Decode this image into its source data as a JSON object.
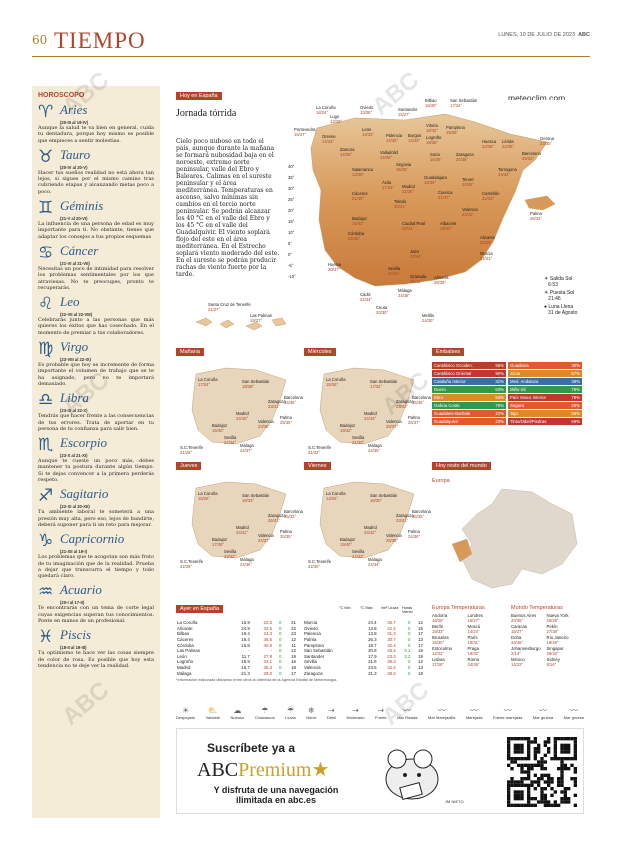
{
  "header": {
    "page_number": "60",
    "section": "TIEMPO",
    "date": "LUNES, 10 DE JULIO DE 2023",
    "logo": "ABC"
  },
  "horoscope": {
    "title": "HOROSCOPO",
    "signs": [
      {
        "glyph": "♈",
        "name": "Aries",
        "dates": "(20-III al 19-IV)",
        "text": "Aunque la salud te va bien en general, cuida tu dentadura, porque hoy mismo es posible que empieces a sentir molestias."
      },
      {
        "glyph": "♉",
        "name": "Tauro",
        "dates": "(20-IV al 20-V)",
        "text": "Hacer tus sueños realidad no está ahora tan lejos, si sigues por el mismo camino tras cubriendo etapas y alcanzando metas poco a poco."
      },
      {
        "glyph": "♊",
        "name": "Géminis",
        "dates": "(21-V al 20-VI)",
        "text": "La influencia de una persona de edad es muy importante para ti. No obstante, tienes que adaptar los consejos a tus propios esquemas"
      },
      {
        "glyph": "♋",
        "name": "Cáncer",
        "dates": "(21-VI al 21-VII)",
        "text": "Necesitas un poco de intimidad para resolver los problemas sentimentales por los que atraviesas. No te preocupes, pronto te recuperarás."
      },
      {
        "glyph": "♌",
        "name": "Leo",
        "dates": "(22-VII al 22-VIII)",
        "text": "Celebrarás junto a las personas que más quieres los éxitos que has cosechado. En el momento de premiar a tus colaboradores."
      },
      {
        "glyph": "♍",
        "name": "Virgo",
        "dates": "(23-VIII al 22-IX)",
        "text": "Es probable que hoy se incremente de forma importante el volumen de trabajo que se te ha asignado, pero no te importará demasiado."
      },
      {
        "glyph": "♎",
        "name": "Libra",
        "dates": "(23-IX al 22-X)",
        "text": "Tendrás que hacer frente a las consecuencias de tus errores. Trata de aportar en tu persona de tu confianza para salir bien."
      },
      {
        "glyph": "♏",
        "name": "Escorpio",
        "dates": "(23-X al 21-XI)",
        "text": "Aunque te cueste un poco más, debes mantener tu postura durante algún tiempo. Si te dejas convencer a la primera perderás respeto."
      },
      {
        "glyph": "♐",
        "name": "Sagitario",
        "dates": "(22-XI al 20-XII)",
        "text": "Tu ambiente laboral te someterá a una presión muy alta, pero eso, lejos de hundirte, deberá suponer para ti un reto para mejorar."
      },
      {
        "glyph": "♑",
        "name": "Capricornio",
        "dates": "(21-XII al 19-I)",
        "text": "Los problemas que te acogotan son más fruto de tu imaginación que de la realidad. Prueba a dejar que transcurra el tiempo y todo quedará claro."
      },
      {
        "glyph": "♒",
        "name": "Acuario",
        "dates": "(20-I al 17-II)",
        "text": "Te encontrarás con un tema de corte legal cuyas exigencias superan tus conocimientos. Ponte en manos de un profesional."
      },
      {
        "glyph": "♓",
        "name": "Piscis",
        "dates": "(18-II al 19-III)",
        "text": "Tu optimismo te hace ver las cosas siempre de color de rosa. Es posible que hoy esta tendencia no te deje ver la realidad."
      }
    ]
  },
  "today": {
    "tag": "Hoy en España",
    "headline": "Jornada tórrida",
    "body": "Cielo poco nuboso en todo el país, aunque durante la mañana se formará nubosidad baja en el noroeste, extremo norte peninsular, valle del Ebro y Baleares. Calimas en el sureste peninsular y el área mediterránea. Temperaturas en ascenso, salvo mínimas sin cambios en el tercio norte peninsular. Se podrán alcanzar los 40 °C en el valle del Ebro y los 45 °C en el valle del Guadalquivir. El viento soplará flojo del este en el área mediterránea. En el Estrecho soplará viento moderado del este. En el sureste se podrán producir rachas de viento fuerte por la tarde.",
    "brand": "meteoclim.com",
    "temp_scale": [
      "40°",
      "35°",
      "30°",
      "25°",
      "20°",
      "15°",
      "10°",
      "5°",
      "0°",
      "-5°",
      "-10°"
    ],
    "cities": [
      {
        "name": "La Coruña",
        "t": "18/24°"
      },
      {
        "name": "Lugo",
        "t": "13/28°"
      },
      {
        "name": "Oviedo",
        "t": "13/28°"
      },
      {
        "name": "Santander",
        "t": "15/27°"
      },
      {
        "name": "Bilbao",
        "t": "16/28°"
      },
      {
        "name": "San Sebastián",
        "t": "17/24°"
      },
      {
        "name": "Pontevedra",
        "t": "16/27°"
      },
      {
        "name": "Orense",
        "t": "14/33°"
      },
      {
        "name": "León",
        "t": "14/33°"
      },
      {
        "name": "Palencia",
        "t": "14/35°"
      },
      {
        "name": "Burgos",
        "t": "14/33°"
      },
      {
        "name": "Vitoria",
        "t": "16/32°"
      },
      {
        "name": "Logroño",
        "t": "18/36°"
      },
      {
        "name": "Pamplona",
        "t": "19/35°"
      },
      {
        "name": "Huesca",
        "t": "22/38°"
      },
      {
        "name": "Lérida",
        "t": "22/38°"
      },
      {
        "name": "Gerona",
        "t": "23/35°"
      },
      {
        "name": "Zamora",
        "t": "14/35°"
      },
      {
        "name": "Valladolid",
        "t": "14/36°"
      },
      {
        "name": "Soria",
        "t": "16/36°"
      },
      {
        "name": "Zaragoza",
        "t": "20/38°"
      },
      {
        "name": "Barcelona",
        "t": "25/33°"
      },
      {
        "name": "Salamanca",
        "t": "13/35°"
      },
      {
        "name": "Segovia",
        "t": "16/35°"
      },
      {
        "name": "Guadalajara",
        "t": "19/36°"
      },
      {
        "name": "Tarragona",
        "t": "24/32°"
      },
      {
        "name": "Ávila",
        "t": "17/33°"
      },
      {
        "name": "Madrid",
        "t": "22/36°"
      },
      {
        "name": "Teruel",
        "t": "20/35°"
      },
      {
        "name": "Cáceres",
        "t": "21/40°"
      },
      {
        "name": "Cuenca",
        "t": "21/37°"
      },
      {
        "name": "Castellón",
        "t": "22/33°"
      },
      {
        "name": "Palma",
        "t": "26/34°"
      },
      {
        "name": "Toledo",
        "t": "20/41°"
      },
      {
        "name": "Valencia",
        "t": "24/33°"
      },
      {
        "name": "Badajoz",
        "t": "15/43°"
      },
      {
        "name": "Ciudad Real",
        "t": "20/41°"
      },
      {
        "name": "Albacete",
        "t": "19/40°"
      },
      {
        "name": "Alicante",
        "t": "25/35°"
      },
      {
        "name": "Córdoba",
        "t": "24/45°"
      },
      {
        "name": "Jaén",
        "t": "27/44°"
      },
      {
        "name": "Murcia",
        "t": "24/41°"
      },
      {
        "name": "Huelva",
        "t": "20/37°"
      },
      {
        "name": "Sevilla",
        "t": "22/44°"
      },
      {
        "name": "Granada",
        "t": "26/41°"
      },
      {
        "name": "Almería",
        "t": "28/39°"
      },
      {
        "name": "Cádiz",
        "t": "22/34°"
      },
      {
        "name": "Málaga",
        "t": "24/38°"
      },
      {
        "name": "Ceuta",
        "t": "20/30°"
      },
      {
        "name": "Melilla",
        "t": "24/30°"
      },
      {
        "name": "Santa Cruz de Tenerife",
        "t": "21/27°"
      },
      {
        "name": "Las Palmas",
        "t": "19/27°"
      }
    ],
    "sun": {
      "sunrise_label": "Salida Sol",
      "sunrise": "6:53",
      "sunset_label": "Puesta Sol",
      "sunset": "21:46",
      "moon_label": "Luna Llena",
      "moon": "31 de Agosto"
    }
  },
  "forecasts": [
    {
      "tag": "Mañana",
      "cities": [
        "La Coruña",
        "San Sebastián",
        "Zaragoza",
        "Barcelona",
        "Madrid",
        "Valencia",
        "Palma",
        "Badajoz",
        "Sevilla",
        "Málaga",
        "S.C.Tenerife"
      ],
      "temps": [
        "17/24°",
        "18/28°",
        "23/41°",
        "24/35°",
        "24/40°",
        "23/36°",
        "25/35°",
        "15/40°",
        "24/44°",
        "24/37°",
        "21/28°"
      ]
    },
    {
      "tag": "Miércoles",
      "cities": [
        "La Coruña",
        "San Sebastián",
        "Zaragoza",
        "Barcelona",
        "Madrid",
        "Valencia",
        "Palma",
        "Badajoz",
        "Sevilla",
        "Málaga",
        "S.C.Tenerife"
      ],
      "temps": [
        "15/26°",
        "17/32°",
        "24/42°",
        "25/35°",
        "24/43°",
        "25/37°",
        "26/37°",
        "19/42°",
        "21/43°",
        "24/35°",
        "21/32°"
      ]
    },
    {
      "tag": "Jueves",
      "cities": [
        "La Coruña",
        "San Sebastián",
        "Zaragoza",
        "Barcelona",
        "Madrid",
        "Valencia",
        "Palma",
        "Badajoz",
        "Sevilla",
        "Málaga",
        "S.C.Tenerife"
      ],
      "temps": [
        "15/26°",
        "18/33°",
        "26/41°",
        "25/33°",
        "24/41°",
        "24/37°",
        "25/35°",
        "17/39°",
        "23/42°",
        "24/36°",
        "22/28°"
      ]
    },
    {
      "tag": "Viernes",
      "cities": [
        "La Coruña",
        "San Sebastián",
        "Zaragoza",
        "Barcelona",
        "Madrid",
        "Valencia",
        "Palma",
        "Badajoz",
        "Sevilla",
        "Málaga",
        "S.C.Tenerife"
      ],
      "temps": [
        "14/26°",
        "16/30°",
        "23/41°",
        "26/35°",
        "24/42°",
        "25/38°",
        "24/36°",
        "19/40°",
        "24/43°",
        "24/34°",
        "22/30°"
      ]
    }
  ],
  "reservoirs": {
    "tag": "Embalses",
    "left": [
      {
        "name": "Cantábrico Occiden.",
        "value": "96%",
        "color": "#c0392b"
      },
      {
        "name": "Cantábrico Oriental",
        "value": "90%",
        "color": "#c0392b"
      },
      {
        "name": "Cataluña Interior",
        "value": "31%",
        "color": "#3a6ea5"
      },
      {
        "name": "Duero",
        "value": "63%",
        "color": "#2e9a4a"
      },
      {
        "name": "Ebro",
        "value": "54%",
        "color": "#d98a2b"
      },
      {
        "name": "Galicia Costa",
        "value": "75%",
        "color": "#2e9a4a"
      },
      {
        "name": "Guadalete-Barbate",
        "value": "22%",
        "color": "#e05a2a"
      },
      {
        "name": "Guadalquivir",
        "value": "23%",
        "color": "#e05a2a"
      }
    ],
    "right": [
      {
        "name": "Guadiana",
        "value": "30%",
        "color": "#e05a2a"
      },
      {
        "name": "Júcar",
        "value": "57%",
        "color": "#d98a2b"
      },
      {
        "name": "Med. Andaluza",
        "value": "39%",
        "color": "#3a6ea5"
      },
      {
        "name": "Miño-Sil",
        "value": "79%",
        "color": "#2e9a4a"
      },
      {
        "name": "País Vasco Interior",
        "value": "78%",
        "color": "#c0392b"
      },
      {
        "name": "Segura",
        "value": "28%",
        "color": "#e05a2a"
      },
      {
        "name": "Tajo",
        "value": "56%",
        "color": "#d98a2b"
      },
      {
        "name": "Tinto/Odiel/Piedras",
        "value": "69%",
        "color": "#c0392b"
      }
    ]
  },
  "world": {
    "tag": "Hoy resto del mundo",
    "europe_label": "Europa"
  },
  "yesterday": {
    "tag": "Ayer en España",
    "headers": [
      "°C Mín",
      "°C Máx",
      "l/m² Lluvia",
      "Horas Viento"
    ],
    "rows_left": [
      [
        "La Coruña",
        "16.9",
        "23.0",
        "0",
        "21"
      ],
      [
        "Alicante",
        "24.9",
        "33.6",
        "0",
        "22"
      ],
      [
        "Bilbao",
        "19.4",
        "24.3",
        "0",
        "23"
      ],
      [
        "Cáceres",
        "16.4",
        "36.6",
        "0",
        "12"
      ],
      [
        "Córdoba",
        "16.8",
        "40.5",
        "0",
        "11"
      ],
      [
        "Las Palmas",
        "-",
        "-",
        "0",
        "12"
      ],
      [
        "León",
        "11.7",
        "27.8",
        "0",
        "19"
      ],
      [
        "Logroño",
        "15.9",
        "33.1",
        "0",
        "16"
      ],
      [
        "Madrid",
        "16.7",
        "35.3",
        "0",
        "18"
      ],
      [
        "Málaga",
        "21.3",
        "28.0",
        "0",
        "17"
      ]
    ],
    "rows_right": [
      [
        "Murcia",
        "24.4",
        "36.7",
        "0",
        "12"
      ],
      [
        "Oviedo",
        "13.8",
        "22.4",
        "0",
        "15"
      ],
      [
        "Palencia",
        "13.8",
        "31.3",
        "0",
        "17"
      ],
      [
        "Palma",
        "26.3",
        "30.7",
        "0",
        "13"
      ],
      [
        "Pamplona",
        "18.7",
        "32.4",
        "0",
        "17"
      ],
      [
        "San Sebastián",
        "20.8",
        "25.4",
        "0.1",
        "19"
      ],
      [
        "Santander",
        "17.9",
        "23.3",
        "3.2",
        "19"
      ],
      [
        "Sevilla",
        "21.6",
        "39.3",
        "0",
        "12"
      ],
      [
        "Valencia",
        "23.6",
        "32.4",
        "0",
        "13"
      ],
      [
        "Zaragoza",
        "21.3",
        "38.3",
        "0",
        "18"
      ]
    ],
    "footnote": "*Información elaborada utilizando entre otros la obtenida de la Agencia Estatal de Meteorología."
  },
  "europe_temps": {
    "title": "Europa Temperaturas",
    "items": [
      [
        "Andorra",
        "18/26°"
      ],
      [
        "Londres",
        "16/27°"
      ],
      [
        "Berlín",
        "19/33°"
      ],
      [
        "Moscú",
        "14/24°"
      ],
      [
        "Bruselas",
        "18/30°"
      ],
      [
        "París",
        "19/31°"
      ],
      [
        "Estocolmo",
        "12/22°"
      ],
      [
        "Praga",
        "19/32°"
      ],
      [
        "Lisboa",
        "17/28°"
      ],
      [
        "Roma",
        "24/36°"
      ]
    ]
  },
  "world_temps": {
    "title": "Mundo Temperaturas",
    "items": [
      [
        "Buenos Aires",
        "20/35°"
      ],
      [
        "Nueva York",
        "25/28°"
      ],
      [
        "Caracas",
        "19/27°"
      ],
      [
        "Pekín",
        "27/38°"
      ],
      [
        "Doha",
        "33/46°"
      ],
      [
        "Río Janeiro",
        "18/28°"
      ],
      [
        "Johannesburgo",
        "2/14°"
      ],
      [
        "Singapur",
        "26/33°"
      ],
      [
        "México",
        "14/22°"
      ],
      [
        "Sídney",
        "8/16°"
      ]
    ]
  },
  "legend": [
    "Despejado",
    "Variable",
    "Nuboso",
    "Chubascos",
    "Lluvia",
    "Nieve",
    "Débil",
    "Moderado",
    "Fuerte",
    "Mar Rizada",
    "Mar Marejadilla",
    "Marejada",
    "Fuerte marejada",
    "Mar gruesa",
    "Mar gruesa"
  ],
  "ad": {
    "line1": "Suscríbete ya a",
    "brand_a": "ABC",
    "brand_b": "Premium",
    "line3": "Y disfruta de una navegación ilimitada en abc.es",
    "signature": "JM NIETO"
  }
}
